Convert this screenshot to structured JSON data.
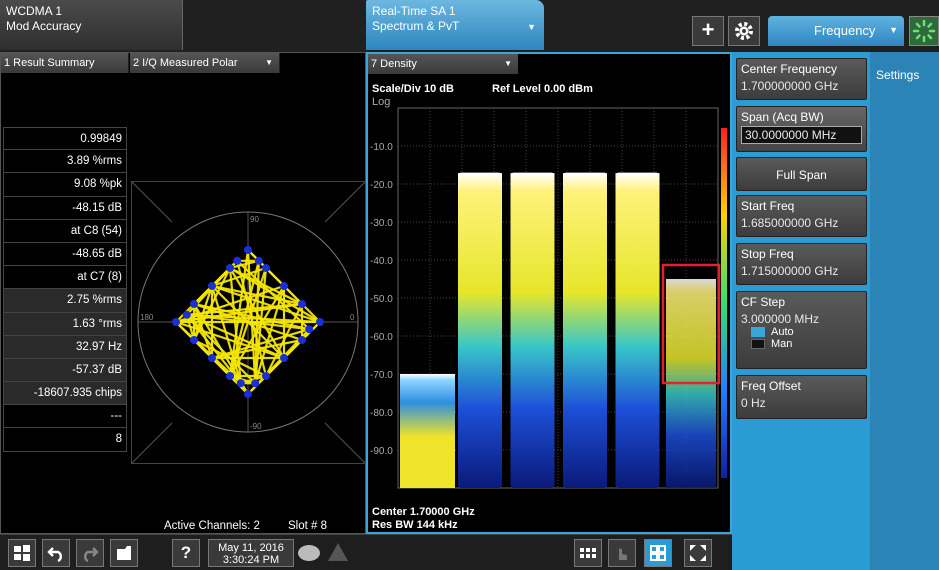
{
  "tabs": {
    "wcdma": {
      "line1": "WCDMA 1",
      "line2": "Mod Accuracy"
    },
    "rtsa": {
      "line1": "Real-Time SA 1",
      "line2": "Spectrum & PvT"
    }
  },
  "toolbar": {
    "add_label": "+",
    "menu_label": "Frequency"
  },
  "left_window": {
    "summary_title": "1 Result Summary",
    "polar_title": "2 I/Q Measured Polar",
    "summary_values": [
      "0.99849",
      "3.89 %rms",
      "9.08 %pk",
      "-48.15 dB",
      "at C8 (54)",
      "-48.65 dB",
      "at C7 (8)",
      "2.75 %rms",
      "1.63 °rms",
      "32.97 Hz",
      "-57.37 dB",
      "-18607.935 chips",
      "---",
      "8"
    ],
    "polar_axis_labels": {
      "top": "90",
      "bottom": "-90",
      "left": "180",
      "right": "0"
    },
    "active_channels": "Active Channels: 2",
    "slot": "Slot # 8"
  },
  "spectrum_window": {
    "title": "7 Density",
    "scale_div": "Scale/Div 10 dB",
    "ref_level": "Ref Level 0.00 dBm",
    "log_label": "Log",
    "center": "Center 1.70000 GHz",
    "res_bw": "Res BW 144 kHz"
  },
  "softkeys": {
    "center_freq": {
      "label": "Center Frequency",
      "value": "1.700000000 GHz"
    },
    "span": {
      "label": "Span (Acq BW)",
      "value": "30.0000000 MHz"
    },
    "full_span": "Full Span",
    "start_freq": {
      "label": "Start Freq",
      "value": "1.685000000 GHz"
    },
    "stop_freq": {
      "label": "Stop Freq",
      "value": "1.715000000 GHz"
    },
    "cf_step": {
      "label": "CF Step",
      "value": "3.000000 MHz",
      "auto": "Auto",
      "man": "Man"
    },
    "freq_offset": {
      "label": "Freq Offset",
      "value": "0 Hz"
    },
    "settings_tab": "Settings"
  },
  "taskbar": {
    "date": "May 11, 2016",
    "time": "3:30:24 PM",
    "help": "?"
  },
  "colors": {
    "accent": "#2a9bd3",
    "highlight_box": "#e0222b",
    "constellation": "#f3e600",
    "symbol": "#1a2fd6"
  },
  "chart_data": {
    "type": "heatmap",
    "title": "7 Density",
    "ylabel": "Log",
    "y_ticks": [
      "-10.0",
      "-20.0",
      "-30.0",
      "-40.0",
      "-50.0",
      "-60.0",
      "-70.0",
      "-80.0",
      "-90.0"
    ],
    "ylim": [
      -100,
      0
    ],
    "x_center_ghz": 1.7,
    "span_mhz": 30,
    "carriers": [
      {
        "index": 1,
        "peak_dbm": -17
      },
      {
        "index": 2,
        "peak_dbm": -17
      },
      {
        "index": 3,
        "peak_dbm": -17
      },
      {
        "index": 4,
        "peak_dbm": -17
      }
    ],
    "side_signal_left_dbm": -70,
    "highlighted_signal_dbm": -45,
    "grid": true
  }
}
